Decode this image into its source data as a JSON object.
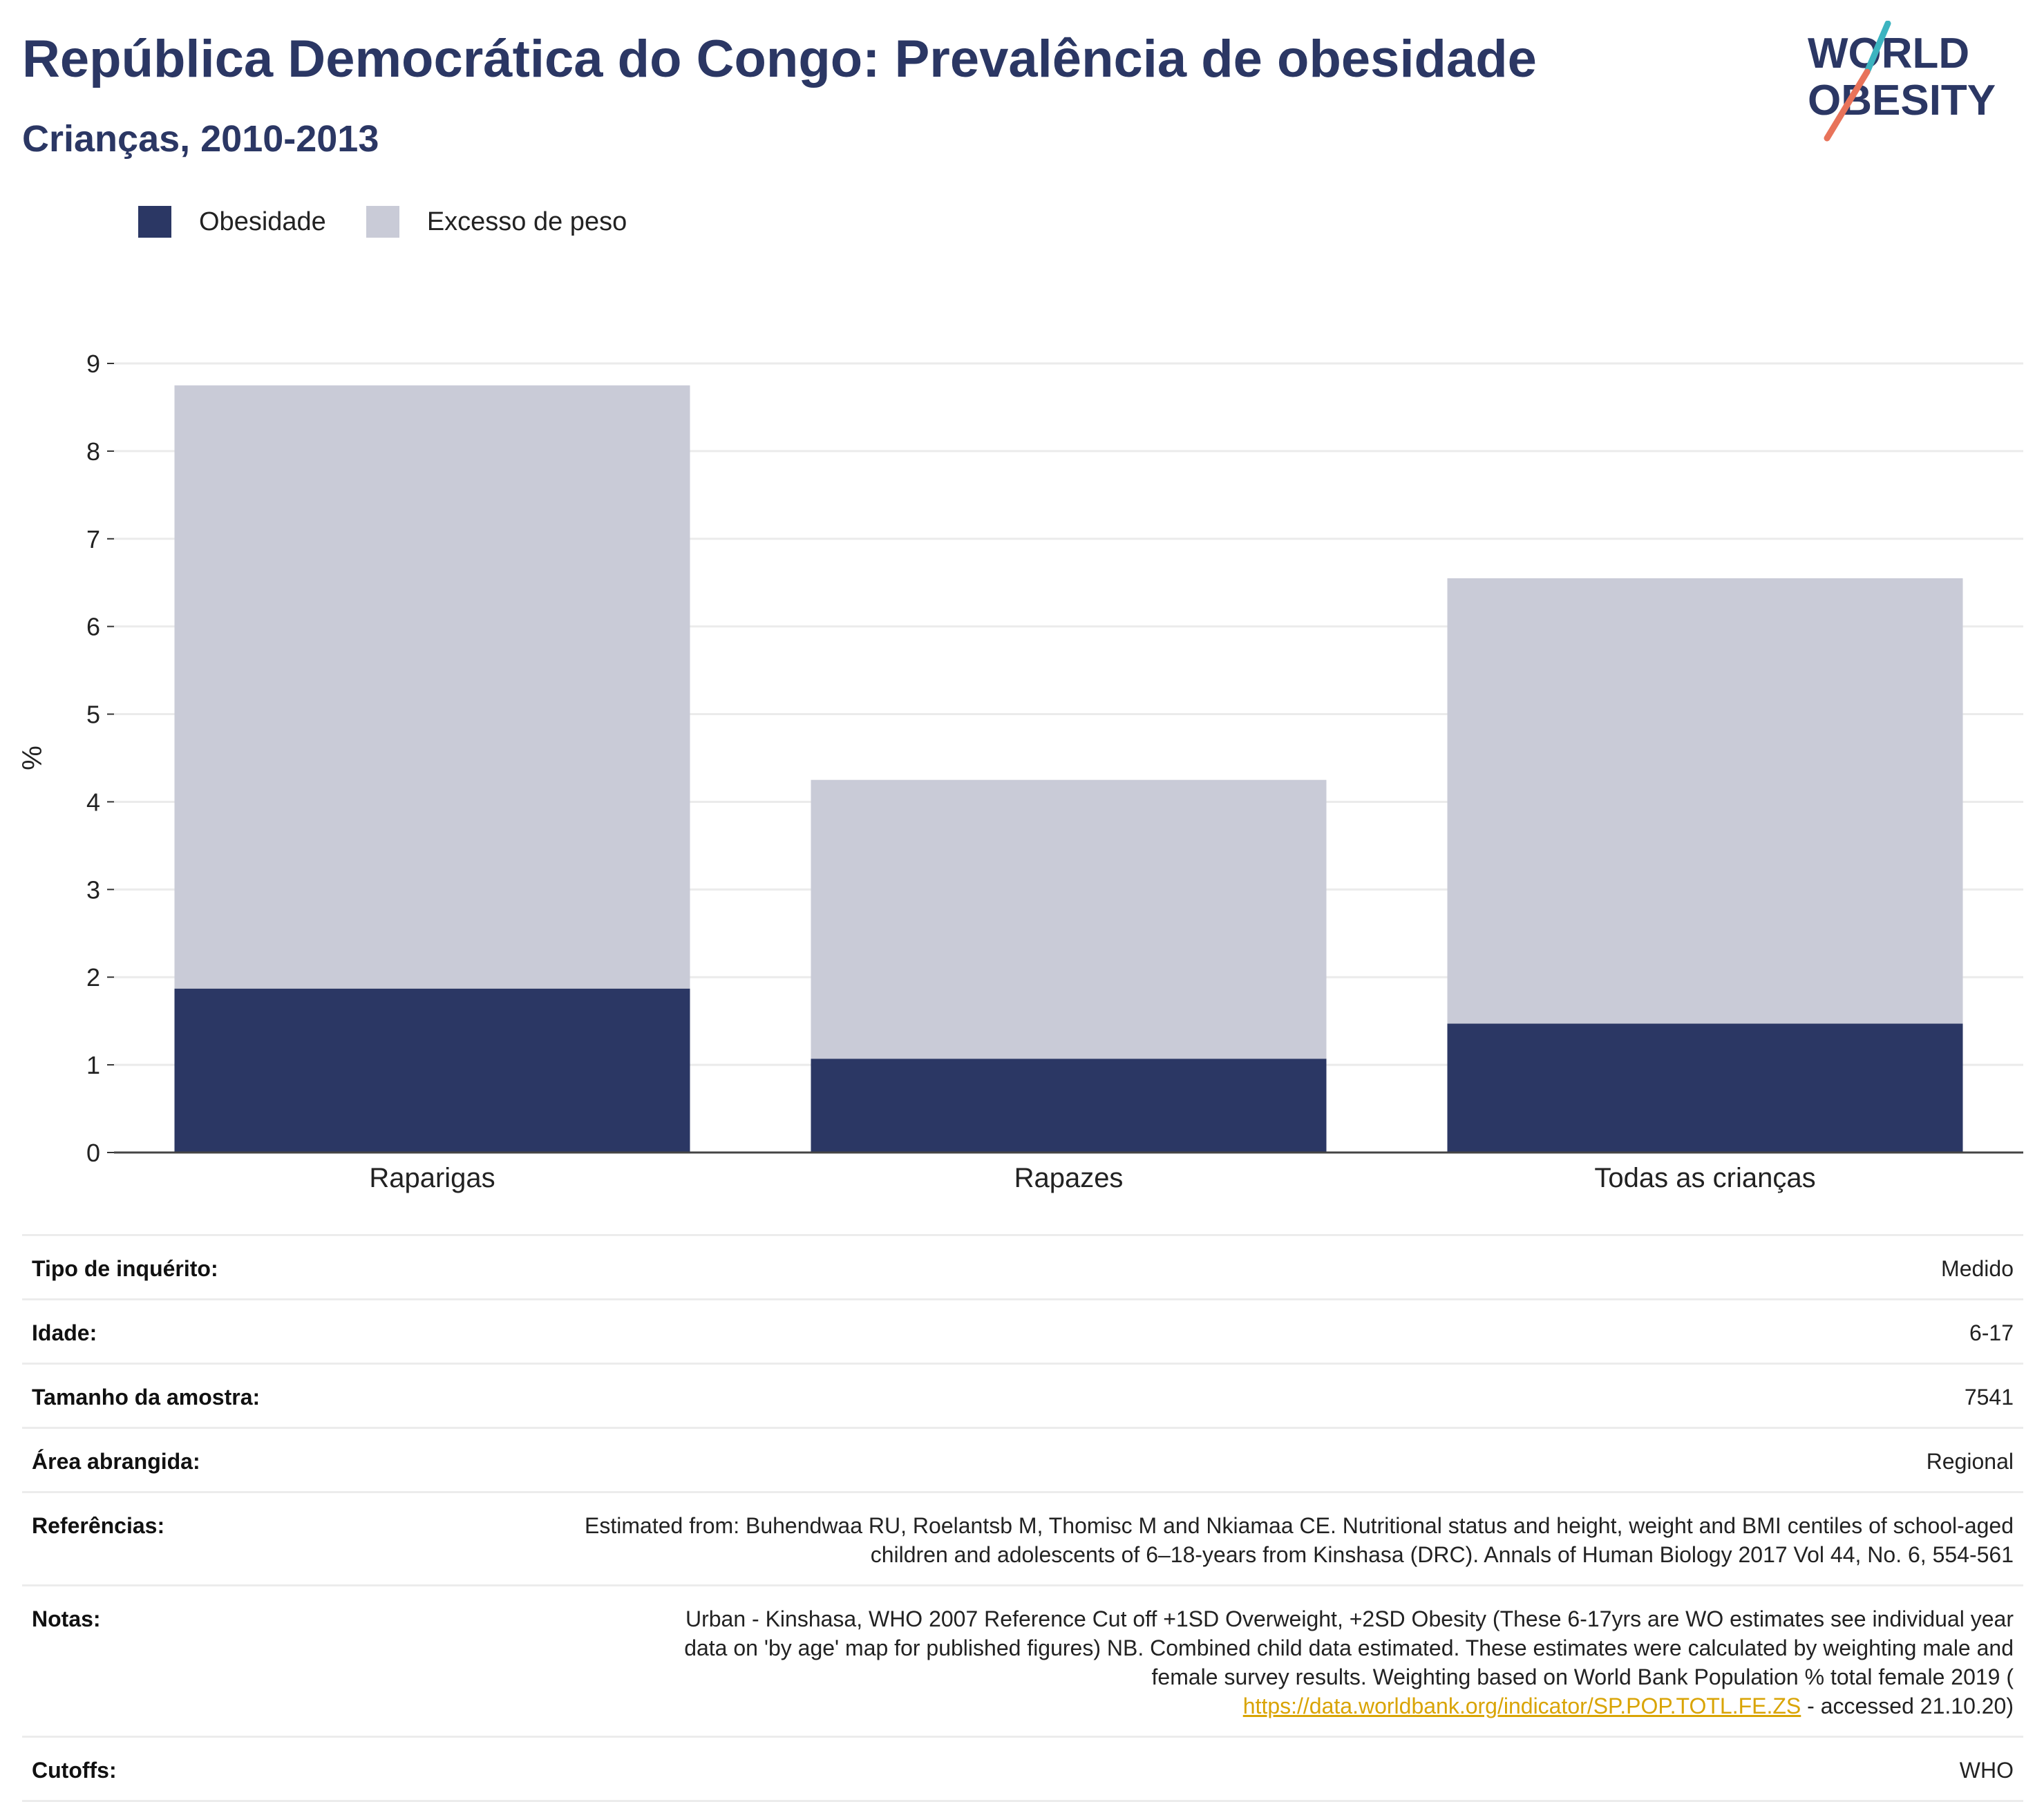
{
  "header": {
    "title": "República Democrática do Congo: Prevalência de obesidade",
    "subtitle": "Crianças, 2010-2013"
  },
  "logo": {
    "line1": "WORLD",
    "line2": "OBESITY",
    "colors": {
      "text": "#2b3764",
      "slash_top": "#3cb4c0",
      "slash_bottom": "#e8735a"
    }
  },
  "legend": {
    "items": [
      {
        "label": "Obesidade",
        "color": "#2b3764"
      },
      {
        "label": "Excesso de peso",
        "color": "#c9cbd7"
      }
    ]
  },
  "chart_data": {
    "type": "bar",
    "stacked": true,
    "categories": [
      "Raparigas",
      "Rapazes",
      "Todas as crianças"
    ],
    "series": [
      {
        "name": "Obesidade",
        "values": [
          1.87,
          1.07,
          1.47
        ],
        "color": "#2b3764"
      },
      {
        "name": "Excesso de peso",
        "values": [
          6.88,
          3.18,
          5.08
        ],
        "color": "#c9cbd7"
      }
    ],
    "ylabel": "%",
    "ylim": [
      0,
      9
    ],
    "yticks": [
      0,
      1,
      2,
      3,
      4,
      5,
      6,
      7,
      8,
      9
    ],
    "grid": true
  },
  "info": {
    "rows": [
      {
        "label": "Tipo de inquérito:",
        "value": "Medido"
      },
      {
        "label": "Idade:",
        "value": "6-17"
      },
      {
        "label": "Tamanho da amostra:",
        "value": "7541"
      },
      {
        "label": "Área abrangida:",
        "value": "Regional"
      },
      {
        "label": "Referências:",
        "value": "Estimated from: Buhendwaa RU, Roelantsb M, Thomisc M and Nkiamaa CE. Nutritional status and height, weight and BMI centiles of school-aged children and adolescents of 6–18-years from Kinshasa (DRC). Annals of Human Biology 2017 Vol 44, No. 6, 554-561"
      }
    ],
    "notes": {
      "label": "Notas:",
      "text_line1": "Urban - Kinshasa, WHO 2007 Reference Cut off +1SD Overweight, +2SD Obesity (These 6-17yrs are WO estimates see individual year",
      "text_line2": "data on 'by age' map for published figures) NB. Combined child data estimated. These estimates were calculated by weighting male and",
      "text_line3": "female survey results. Weighting based on World Bank Population % total female 2019 (",
      "link": "https://data.worldbank.org/indicator/SP.POP.TOTL.FE.ZS",
      "after_link": " - accessed 21.10.20)"
    },
    "cutoffs": {
      "label": "Cutoffs:",
      "value": "WHO"
    }
  }
}
